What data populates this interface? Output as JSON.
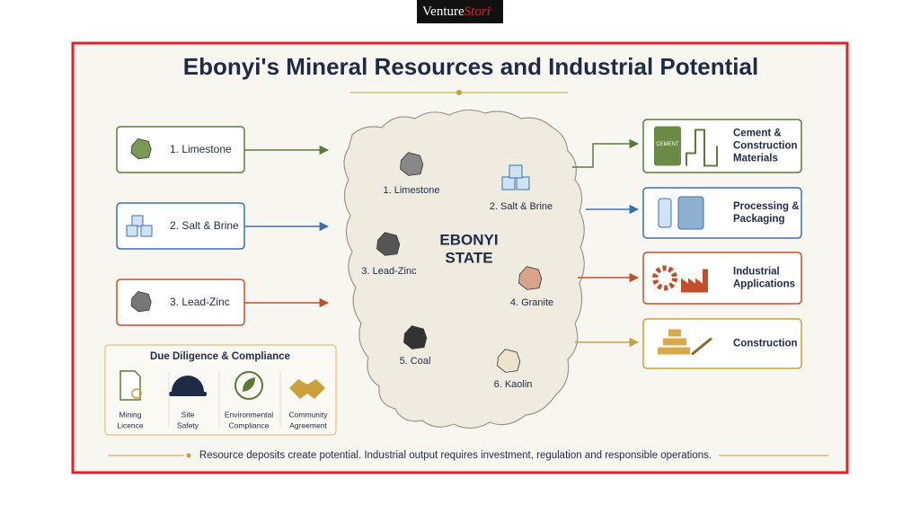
{
  "logo": {
    "part1": "Venture",
    "part2": "Stori"
  },
  "title": "Ebonyi's Mineral Resources and Industrial Potential",
  "sources": [
    {
      "label": "1. Limestone"
    },
    {
      "label": "2. Salt & Brine"
    },
    {
      "label": "3. Lead-Zinc"
    }
  ],
  "map": {
    "state_lines": [
      "EBONYI",
      "STATE"
    ],
    "minerals": [
      "1. Limestone",
      "2. Salt & Brine",
      "3. Lead-Zinc",
      "4. Granite",
      "5. Coal",
      "6. Kaolin"
    ]
  },
  "outputs": [
    {
      "lines": [
        "Cement &",
        "Construction",
        "Materials"
      ],
      "icon_text": "CEMENT"
    },
    {
      "lines": [
        "Processing &",
        "Packaging"
      ]
    },
    {
      "lines": [
        "Industrial",
        "Applications"
      ]
    },
    {
      "lines": [
        "Construction"
      ]
    }
  ],
  "compliance": {
    "title": "Due Diligence & Compliance",
    "items": [
      [
        "Mining",
        "Licence"
      ],
      [
        "Site",
        "Safety"
      ],
      [
        "Environmental",
        "Compliance"
      ],
      [
        "Community",
        "Agreement"
      ]
    ]
  },
  "footer": "Resource deposits create potential. Industrial output requires investment, regulation and responsible operations."
}
